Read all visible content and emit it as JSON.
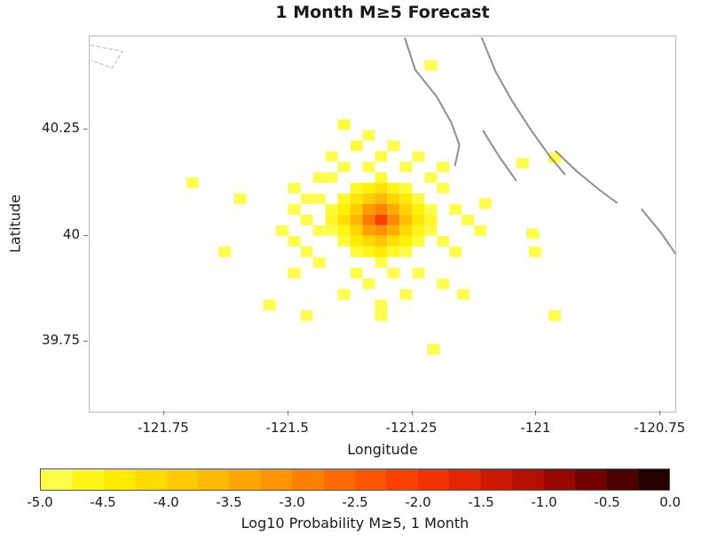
{
  "chart_data": {
    "type": "heatmap",
    "title": "1 Month M≥5 Forecast",
    "xlabel": "Longitude",
    "ylabel": "Latitude",
    "xlim": [
      -121.9,
      -120.72
    ],
    "ylim": [
      39.585,
      40.47
    ],
    "grid": false,
    "cell_size_deg": 0.025,
    "xticks": [
      {
        "value": -121.75,
        "label": "-121.75"
      },
      {
        "value": -121.5,
        "label": "-121.5"
      },
      {
        "value": -121.25,
        "label": "-121.25"
      },
      {
        "value": -121.0,
        "label": "-121"
      },
      {
        "value": -120.75,
        "label": "-120.75"
      }
    ],
    "yticks": [
      {
        "value": 40.25,
        "label": "40.25"
      },
      {
        "value": 40.0,
        "label": "40"
      },
      {
        "value": 39.75,
        "label": "39.75"
      }
    ],
    "colorbar": {
      "label": "Log10 Probability M≥5, 1 Month",
      "min": -5.0,
      "max": 0.0,
      "segments": 20,
      "tick_labels": [
        "-5.0",
        "-4.5",
        "-4.0",
        "-3.5",
        "-3.0",
        "-2.5",
        "-2.0",
        "-1.5",
        "-1.0",
        "-0.5",
        "0.0"
      ],
      "stops": [
        [
          -5.0,
          "#ffff60"
        ],
        [
          -4.5,
          "#fff200"
        ],
        [
          -4.0,
          "#ffd400"
        ],
        [
          -3.5,
          "#ffb000"
        ],
        [
          -3.0,
          "#ff8a00"
        ],
        [
          -2.5,
          "#ff6000"
        ],
        [
          -2.0,
          "#f93800"
        ],
        [
          -1.5,
          "#d81e00"
        ],
        [
          -1.0,
          "#a80a00"
        ],
        [
          -0.5,
          "#600000"
        ],
        [
          0.0,
          "#100000"
        ]
      ]
    },
    "cells": [
      [
        -121.313,
        40.037,
        -2.1
      ],
      [
        -121.338,
        40.037,
        -2.8
      ],
      [
        -121.288,
        40.037,
        -3.0
      ],
      [
        -121.313,
        40.062,
        -2.9
      ],
      [
        -121.313,
        40.012,
        -3.1
      ],
      [
        -121.338,
        40.062,
        -3.2
      ],
      [
        -121.288,
        40.062,
        -3.4
      ],
      [
        -121.338,
        40.012,
        -3.3
      ],
      [
        -121.288,
        40.012,
        -3.5
      ],
      [
        -121.363,
        40.037,
        -3.6
      ],
      [
        -121.263,
        40.037,
        -3.7
      ],
      [
        -121.313,
        40.087,
        -3.6
      ],
      [
        -121.313,
        39.987,
        -3.8
      ],
      [
        -121.363,
        40.062,
        -3.9
      ],
      [
        -121.263,
        40.062,
        -4.0
      ],
      [
        -121.363,
        40.012,
        -4.0
      ],
      [
        -121.263,
        40.012,
        -4.1
      ],
      [
        -121.338,
        40.087,
        -3.9
      ],
      [
        -121.288,
        40.087,
        -4.0
      ],
      [
        -121.338,
        39.987,
        -4.1
      ],
      [
        -121.288,
        39.987,
        -4.2
      ],
      [
        -121.388,
        40.037,
        -4.2
      ],
      [
        -121.238,
        40.037,
        -4.3
      ],
      [
        -121.313,
        40.112,
        -4.2
      ],
      [
        -121.313,
        39.962,
        -4.4
      ],
      [
        -121.363,
        40.087,
        -4.3
      ],
      [
        -121.263,
        40.087,
        -4.4
      ],
      [
        -121.363,
        39.987,
        -4.4
      ],
      [
        -121.263,
        39.987,
        -4.5
      ],
      [
        -121.388,
        40.062,
        -4.5
      ],
      [
        -121.238,
        40.062,
        -4.5
      ],
      [
        -121.388,
        40.012,
        -4.6
      ],
      [
        -121.238,
        40.012,
        -4.6
      ],
      [
        -121.338,
        40.112,
        -4.5
      ],
      [
        -121.288,
        40.112,
        -4.6
      ],
      [
        -121.338,
        39.962,
        -4.6
      ],
      [
        -121.288,
        39.962,
        -4.7
      ],
      [
        -121.413,
        40.037,
        -4.7
      ],
      [
        -121.213,
        40.037,
        -4.7
      ],
      [
        -121.388,
        40.087,
        -4.7
      ],
      [
        -121.238,
        40.087,
        -4.8
      ],
      [
        -121.388,
        39.987,
        -4.8
      ],
      [
        -121.238,
        39.987,
        -4.8
      ],
      [
        -121.363,
        40.112,
        -4.7
      ],
      [
        -121.263,
        40.112,
        -4.8
      ],
      [
        -121.363,
        39.962,
        -4.8
      ],
      [
        -121.263,
        39.962,
        -4.9
      ],
      [
        -121.313,
        40.137,
        -4.8
      ],
      [
        -121.313,
        39.937,
        -4.9
      ],
      [
        -121.413,
        40.062,
        -4.8
      ],
      [
        -121.213,
        40.012,
        -4.9
      ],
      [
        -121.413,
        40.012,
        -4.9
      ],
      [
        -121.213,
        40.062,
        -4.9
      ],
      [
        -121.463,
        40.037,
        -4.9
      ],
      [
        -121.438,
        40.087,
        -4.9
      ],
      [
        -121.438,
        40.012,
        -4.9
      ],
      [
        -121.488,
        40.062,
        -4.9
      ],
      [
        -121.463,
        39.962,
        -4.9
      ],
      [
        -121.513,
        40.012,
        -4.9
      ],
      [
        -121.438,
        40.137,
        -4.9
      ],
      [
        -121.413,
        40.137,
        -4.9
      ],
      [
        -121.463,
        40.087,
        -4.9
      ],
      [
        -121.488,
        39.987,
        -4.9
      ],
      [
        -121.163,
        40.062,
        -4.9
      ],
      [
        -121.188,
        39.987,
        -4.9
      ],
      [
        -121.138,
        40.037,
        -4.9
      ],
      [
        -121.188,
        40.112,
        -4.9
      ],
      [
        -121.163,
        39.962,
        -4.9
      ],
      [
        -121.113,
        40.012,
        -4.9
      ],
      [
        -121.213,
        40.137,
        -4.9
      ],
      [
        -121.188,
        40.162,
        -4.9
      ],
      [
        -121.388,
        40.162,
        -4.9
      ],
      [
        -121.338,
        40.162,
        -4.9
      ],
      [
        -121.263,
        40.162,
        -4.9
      ],
      [
        -121.313,
        40.187,
        -4.9
      ],
      [
        -121.413,
        40.187,
        -4.9
      ],
      [
        -121.238,
        40.187,
        -4.9
      ],
      [
        -121.363,
        39.912,
        -4.9
      ],
      [
        -121.288,
        39.912,
        -4.9
      ],
      [
        -121.438,
        39.937,
        -4.9
      ],
      [
        -121.238,
        39.912,
        -4.9
      ],
      [
        -121.338,
        39.887,
        -4.9
      ],
      [
        -121.263,
        39.862,
        -4.9
      ],
      [
        -121.388,
        39.862,
        -4.9
      ],
      [
        -121.313,
        39.837,
        -4.9
      ],
      [
        -121.188,
        39.887,
        -4.9
      ],
      [
        -121.488,
        39.912,
        -4.9
      ],
      [
        -121.388,
        40.262,
        -4.8
      ],
      [
        -121.338,
        40.237,
        -4.9
      ],
      [
        -121.363,
        40.212,
        -4.8
      ],
      [
        -121.288,
        40.212,
        -4.9
      ],
      [
        -121.213,
        40.402,
        -4.9
      ],
      [
        -121.693,
        40.125,
        -4.9
      ],
      [
        -121.598,
        40.087,
        -4.9
      ],
      [
        -121.488,
        40.112,
        -4.9
      ],
      [
        -121.028,
        40.171,
        -4.9
      ],
      [
        -120.964,
        40.185,
        -4.9
      ],
      [
        -121.103,
        40.077,
        -4.9
      ],
      [
        -121.008,
        40.006,
        -4.9
      ],
      [
        -121.003,
        39.962,
        -4.9
      ],
      [
        -121.538,
        39.837,
        -4.9
      ],
      [
        -121.463,
        39.812,
        -4.9
      ],
      [
        -121.313,
        39.812,
        -4.9
      ],
      [
        -121.148,
        39.862,
        -4.9
      ],
      [
        -121.208,
        39.732,
        -4.9
      ],
      [
        -120.963,
        39.812,
        -4.9
      ],
      [
        -121.628,
        39.962,
        -4.9
      ]
    ],
    "fault_lines": [
      {
        "dashed": false,
        "points": [
          [
            -121.265,
            40.466
          ],
          [
            -121.244,
            40.391
          ],
          [
            -121.201,
            40.328
          ],
          [
            -121.171,
            40.266
          ],
          [
            -121.155,
            40.214
          ],
          [
            -121.164,
            40.166
          ]
        ]
      },
      {
        "dashed": false,
        "points": [
          [
            -121.11,
            40.466
          ],
          [
            -121.082,
            40.387
          ],
          [
            -121.05,
            40.32
          ],
          [
            -121.012,
            40.251
          ],
          [
            -120.973,
            40.187
          ],
          [
            -120.943,
            40.145
          ]
        ]
      },
      {
        "dashed": false,
        "points": [
          [
            -121.107,
            40.247
          ],
          [
            -121.075,
            40.187
          ],
          [
            -121.041,
            40.13
          ]
        ]
      },
      {
        "dashed": false,
        "points": [
          [
            -120.961,
            40.199
          ],
          [
            -120.916,
            40.149
          ],
          [
            -120.873,
            40.108
          ],
          [
            -120.838,
            40.078
          ]
        ]
      },
      {
        "dashed": false,
        "points": [
          [
            -120.788,
            40.062
          ],
          [
            -120.749,
            40.007
          ],
          [
            -120.72,
            39.958
          ]
        ]
      },
      {
        "dashed": true,
        "points": [
          [
            -121.898,
            40.449
          ],
          [
            -121.834,
            40.435
          ],
          [
            -121.854,
            40.395
          ],
          [
            -121.898,
            40.414
          ]
        ]
      }
    ]
  }
}
